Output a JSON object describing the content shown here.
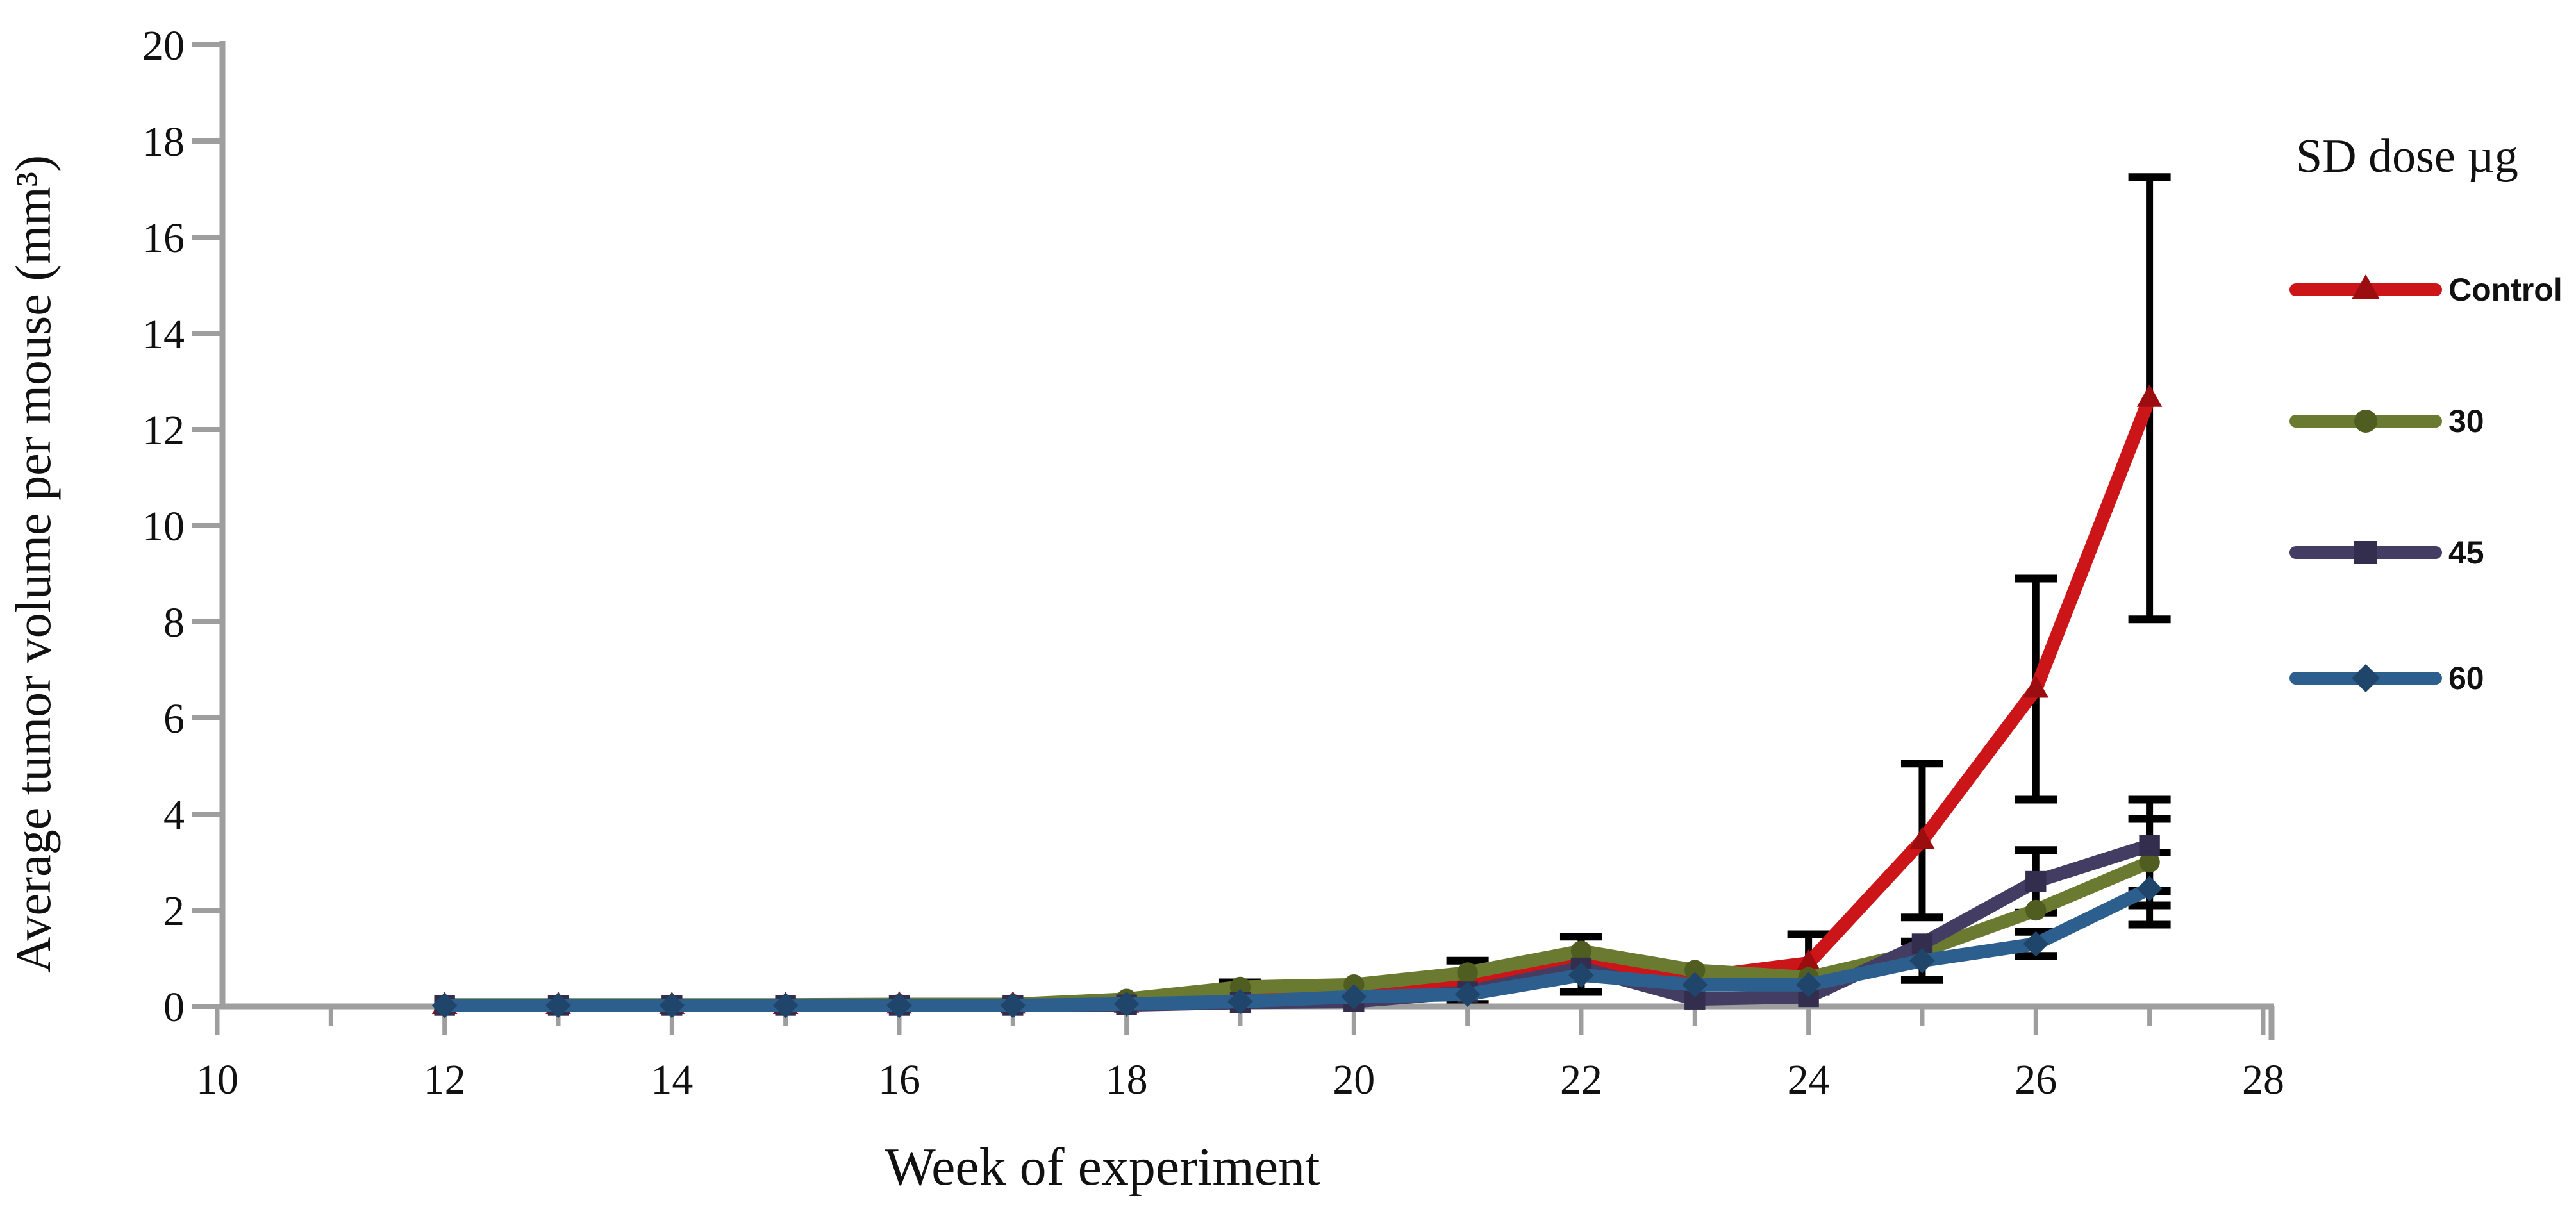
{
  "chart_data": {
    "type": "line",
    "title": "",
    "xlabel": "Week of experiment",
    "ylabel": "Average tumor volume per mouse (mm³)",
    "legend_title": "SD dose µg",
    "xlim": [
      10,
      28
    ],
    "ylim": [
      0,
      20
    ],
    "x_ticks": [
      10,
      12,
      14,
      16,
      18,
      20,
      22,
      24,
      26,
      28
    ],
    "y_ticks": [
      0,
      2,
      4,
      6,
      8,
      10,
      12,
      14,
      16,
      18,
      20
    ],
    "grid": false,
    "legend_position": "right",
    "axis_color": "#9e9e9e",
    "error_bar_color": "#000000",
    "x": [
      12,
      13,
      14,
      15,
      16,
      17,
      18,
      19,
      20,
      21,
      22,
      23,
      24,
      25,
      26,
      27
    ],
    "series": [
      {
        "name": "Control",
        "color": "#cc1518",
        "marker": "triangle",
        "marker_color": "#9c0d10",
        "values": [
          0.02,
          0.02,
          0.02,
          0.02,
          0.03,
          0.03,
          0.05,
          0.3,
          0.35,
          0.5,
          0.95,
          0.6,
          0.9,
          3.45,
          6.6,
          12.65
        ],
        "err": [
          0,
          0,
          0,
          0,
          0,
          0,
          0,
          0,
          0,
          0,
          0,
          0,
          0.6,
          1.6,
          2.3,
          4.6
        ]
      },
      {
        "name": "30",
        "color": "#6b7a31",
        "marker": "circle",
        "marker_color": "#4f5d20",
        "values": [
          0.03,
          0.03,
          0.03,
          0.03,
          0.04,
          0.04,
          0.15,
          0.4,
          0.45,
          0.7,
          1.15,
          0.75,
          0.6,
          1.15,
          2.0,
          3.0
        ],
        "err": [
          0,
          0,
          0,
          0,
          0,
          0,
          0,
          0.1,
          0,
          0.25,
          0.3,
          0,
          0,
          0,
          0,
          0.9
        ]
      },
      {
        "name": "45",
        "color": "#433c63",
        "marker": "square",
        "marker_color": "#342e4e",
        "values": [
          0.02,
          0.02,
          0.02,
          0.02,
          0.02,
          0.02,
          0.03,
          0.08,
          0.1,
          0.3,
          0.8,
          0.15,
          0.2,
          1.3,
          2.6,
          3.35
        ],
        "err": [
          0,
          0,
          0,
          0,
          0,
          0,
          0,
          0,
          0,
          0,
          0,
          0,
          0,
          0,
          0.65,
          0.95
        ]
      },
      {
        "name": "60",
        "color": "#2d5f8e",
        "marker": "diamond",
        "marker_color": "#1f456b",
        "values": [
          0.02,
          0.02,
          0.02,
          0.02,
          0.02,
          0.02,
          0.05,
          0.1,
          0.2,
          0.25,
          0.65,
          0.45,
          0.45,
          0.95,
          1.3,
          2.45
        ],
        "err": [
          0,
          0,
          0,
          0,
          0,
          0,
          0,
          0,
          0,
          0.2,
          0.35,
          0,
          0,
          0.4,
          0.25,
          0.75
        ]
      }
    ]
  }
}
